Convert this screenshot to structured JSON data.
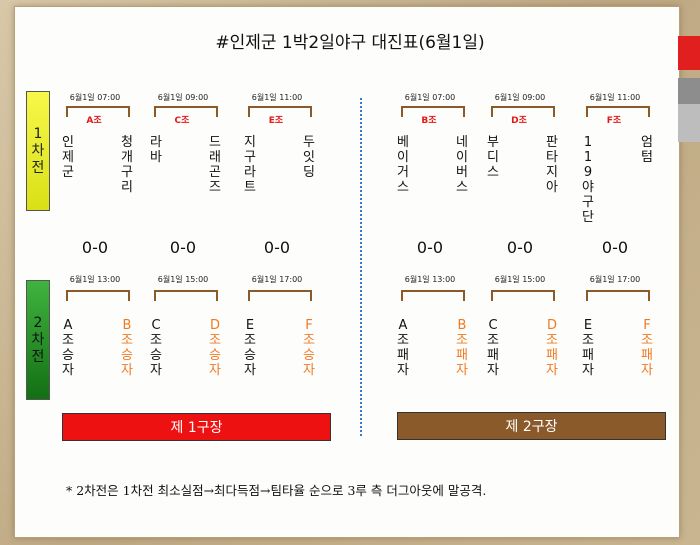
{
  "title": "#인제군 1박2일야구 대진표(6월1일)",
  "round1_label": [
    "1",
    "차",
    "전"
  ],
  "round2_label": [
    "2",
    "차",
    "전"
  ],
  "round1": [
    {
      "time": "6월1일 07:00",
      "group": "A조",
      "left": [
        "인",
        "제",
        "군"
      ],
      "right": [
        "청",
        "개",
        "구",
        "리"
      ],
      "score": "0-0"
    },
    {
      "time": "6월1일 09:00",
      "group": "C조",
      "left": [
        "라",
        "바"
      ],
      "right": [
        "드",
        "래",
        "곤",
        "즈"
      ],
      "score": "0-0"
    },
    {
      "time": "6월1일 11:00",
      "group": "E조",
      "left": [
        "지",
        "구",
        "라",
        "트"
      ],
      "right": [
        "두",
        "잇",
        "딩"
      ],
      "score": "0-0"
    },
    {
      "time": "6월1일 07:00",
      "group": "B조",
      "left": [
        "베",
        "이",
        "거",
        "스"
      ],
      "right": [
        "네",
        "이",
        "버",
        "스"
      ],
      "score": "0-0"
    },
    {
      "time": "6월1일 09:00",
      "group": "D조",
      "left": [
        "부",
        "디",
        "스"
      ],
      "right": [
        "판",
        "타",
        "지",
        "아"
      ],
      "score": "0-0"
    },
    {
      "time": "6월1일 11:00",
      "group": "F조",
      "left": [
        "119",
        "야",
        "구",
        "단"
      ],
      "right": [
        "엄",
        "텀"
      ],
      "score": "0-0"
    }
  ],
  "round2": [
    {
      "time": "6월1일 13:00",
      "left": [
        "A조",
        "승",
        "자"
      ],
      "right": [
        "B조",
        "승",
        "자"
      ]
    },
    {
      "time": "6월1일 15:00",
      "left": [
        "C조",
        "승",
        "자"
      ],
      "right": [
        "D조",
        "승",
        "자"
      ]
    },
    {
      "time": "6월1일 17:00",
      "left": [
        "E조",
        "승",
        "자"
      ],
      "right": [
        "F조",
        "승",
        "자"
      ]
    },
    {
      "time": "6월1일 13:00",
      "left": [
        "A조",
        "패",
        "자"
      ],
      "right": [
        "B조",
        "패",
        "자"
      ]
    },
    {
      "time": "6월1일 15:00",
      "left": [
        "C조",
        "패",
        "자"
      ],
      "right": [
        "D조",
        "패",
        "자"
      ]
    },
    {
      "time": "6월1일 17:00",
      "left": [
        "E조",
        "패",
        "자"
      ],
      "right": [
        "F조",
        "패",
        "자"
      ]
    }
  ],
  "field1": "제 1구장",
  "field2": "제 2구장",
  "footnote": "* 2차전은 1차전 최소실점→최다득점→팀타율 순으로 3루 측 더그아웃에 말공격.",
  "colors": {
    "field1": "#ee1111",
    "field2": "#8b5a2b",
    "round1_badge": "#e8f020",
    "round2_badge": "#1f8a1f",
    "bracket": "#8b5a2b",
    "group_label": "#e01a1a",
    "loser_team": "#f07a22"
  }
}
